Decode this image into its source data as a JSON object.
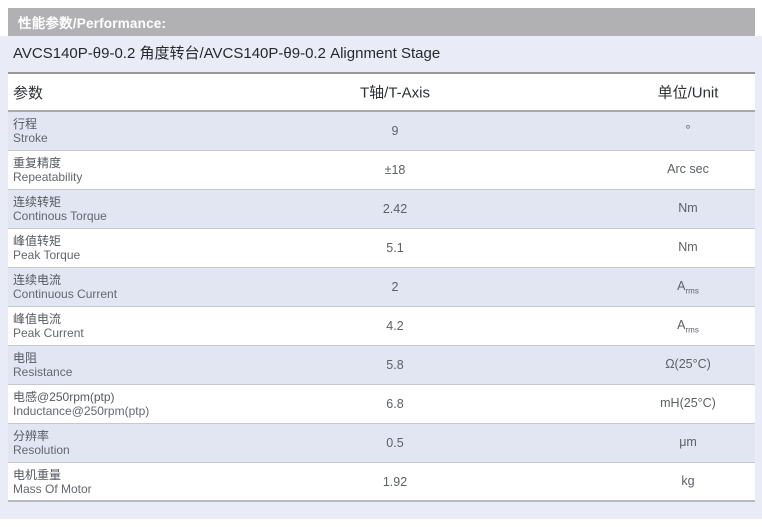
{
  "header": {
    "title": "性能参数/Performance:"
  },
  "product_line": "AVCS140P-θ9-0.2 角度转台/AVCS140P-θ9-0.2 Alignment Stage",
  "table": {
    "columns": {
      "param": "参数",
      "axis": "T轴/T-Axis",
      "unit": "单位/Unit"
    },
    "rows": [
      {
        "cn": "行程",
        "en": "Stroke",
        "value": "9",
        "unit": "°"
      },
      {
        "cn": "重复精度",
        "en": "Repeatability",
        "value": "±18",
        "unit": "Arc sec"
      },
      {
        "cn": "连续转矩",
        "en": "Continous Torque",
        "value": "2.42",
        "unit": "Nm"
      },
      {
        "cn": "峰值转矩",
        "en": "Peak Torque",
        "value": "5.1",
        "unit": "Nm"
      },
      {
        "cn": "连续电流",
        "en": "Continuous Current",
        "value": "2",
        "unit": "A",
        "unit_sub": "rms"
      },
      {
        "cn": "峰值电流",
        "en": "Peak Current",
        "value": "4.2",
        "unit": "A",
        "unit_sub": "rms"
      },
      {
        "cn": "电阻",
        "en": "Resistance",
        "value": "5.8",
        "unit": "Ω(25°C)"
      },
      {
        "cn": "电感@250rpm(ptp)",
        "en": "Inductance@250rpm(ptp)",
        "value": "6.8",
        "unit": "mH(25°C)"
      },
      {
        "cn": "分辨率",
        "en": "Resolution",
        "value": "0.5",
        "unit": "μm"
      },
      {
        "cn": "电机重量",
        "en": "Mass Of Motor",
        "value": "1.92",
        "unit": "kg"
      }
    ]
  },
  "colors": {
    "title_bar_bg": "#b1b1b3",
    "panel_bg": "#e9ecf6",
    "alt_row_bg": "#e2e6f2",
    "header_border": "#97979a",
    "row_separator": "#c5c8ce"
  }
}
